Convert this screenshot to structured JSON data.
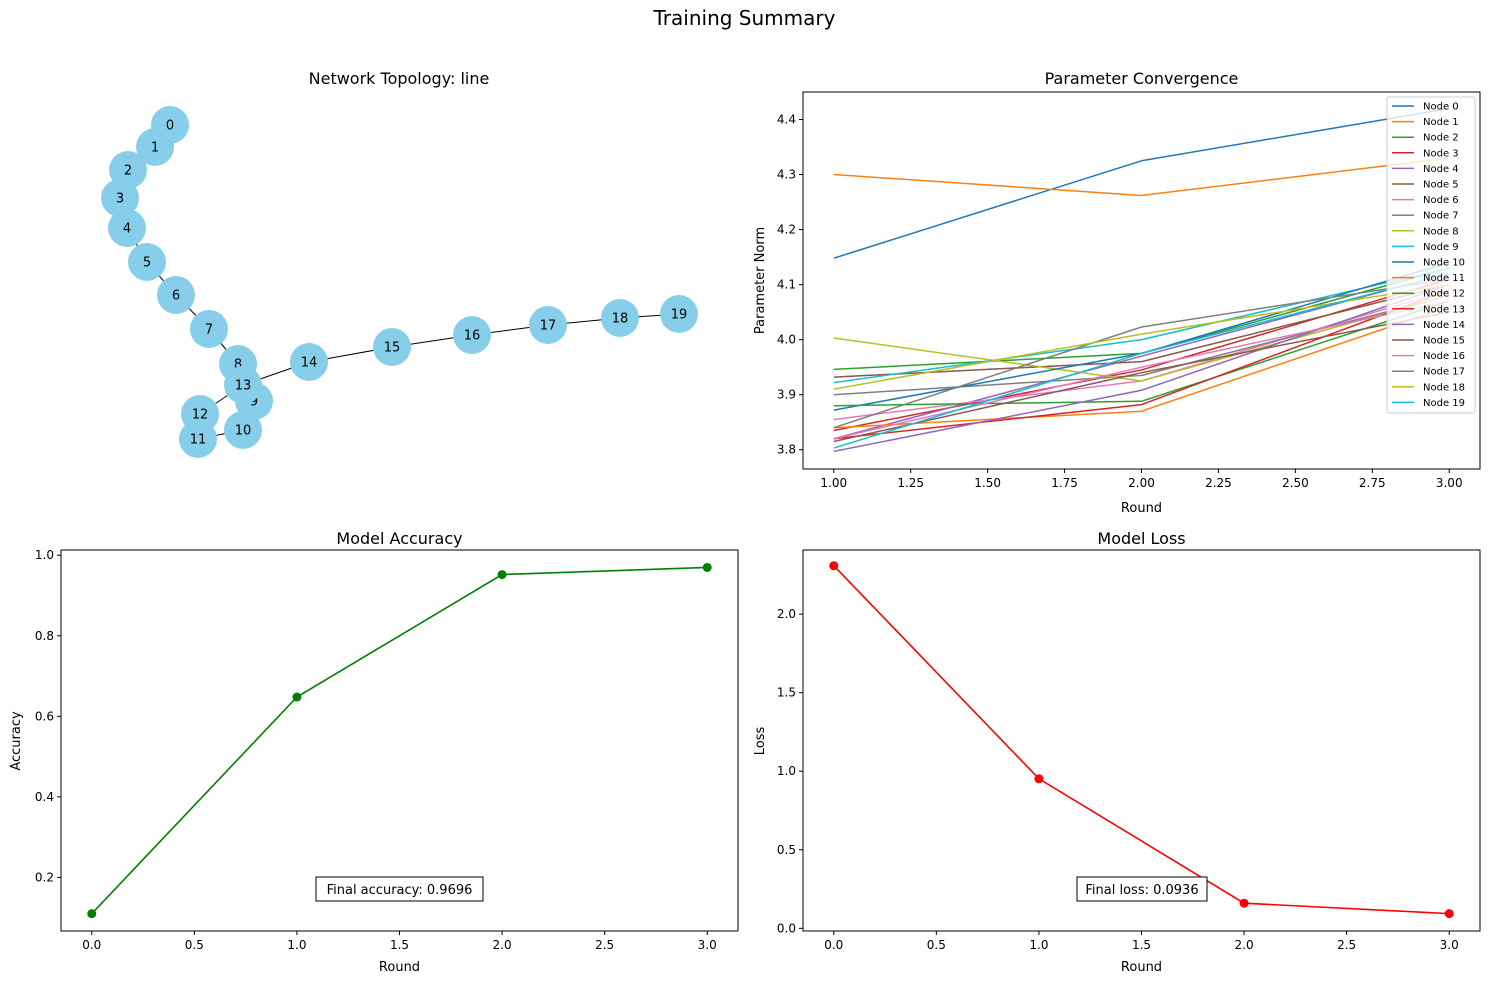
{
  "figure": {
    "title": "Training Summary"
  },
  "colors": {
    "node": "#87ceeb",
    "edge": "#000000",
    "accuracy": "#008000",
    "loss": "#ff0000",
    "palette": [
      "#1f77b4",
      "#ff7f0e",
      "#2ca02c",
      "#d62728",
      "#9467bd",
      "#8c564b",
      "#e377c2",
      "#7f7f7f",
      "#bcbd22",
      "#17becf"
    ]
  },
  "chart_data": [
    {
      "type": "network",
      "title": "Network Topology: line",
      "nodes": [
        "0",
        "1",
        "2",
        "3",
        "4",
        "5",
        "6",
        "7",
        "8",
        "9",
        "10",
        "11",
        "12",
        "13",
        "14",
        "15",
        "16",
        "17",
        "18",
        "19"
      ],
      "edges": [
        [
          "0",
          "1"
        ],
        [
          "1",
          "2"
        ],
        [
          "2",
          "3"
        ],
        [
          "3",
          "4"
        ],
        [
          "4",
          "5"
        ],
        [
          "5",
          "6"
        ],
        [
          "6",
          "7"
        ],
        [
          "7",
          "8"
        ],
        [
          "8",
          "9"
        ],
        [
          "9",
          "10"
        ],
        [
          "10",
          "11"
        ],
        [
          "11",
          "12"
        ],
        [
          "12",
          "13"
        ],
        [
          "13",
          "14"
        ],
        [
          "14",
          "15"
        ],
        [
          "15",
          "16"
        ],
        [
          "16",
          "17"
        ],
        [
          "17",
          "18"
        ],
        [
          "18",
          "19"
        ]
      ],
      "axes_visible": false
    },
    {
      "type": "line",
      "title": "Parameter Convergence",
      "xlabel": "Round",
      "ylabel": "Parameter Norm",
      "xlim": [
        0.9,
        3.1
      ],
      "ylim": [
        3.765,
        4.45
      ],
      "xticks": [
        "1.00",
        "1.25",
        "1.50",
        "1.75",
        "2.00",
        "2.25",
        "2.50",
        "2.75",
        "3.00"
      ],
      "yticks": [
        "3.8",
        "3.9",
        "4.0",
        "4.1",
        "4.2",
        "4.3",
        "4.4"
      ],
      "legend_position": "upper-right",
      "x": [
        1,
        2,
        3
      ],
      "series": [
        {
          "name": "Node 0",
          "values": [
            4.148,
            4.325,
            4.42
          ]
        },
        {
          "name": "Node 1",
          "values": [
            4.3,
            4.262,
            4.33
          ]
        },
        {
          "name": "Node 2",
          "values": [
            3.946,
            3.975,
            4.13
          ]
        },
        {
          "name": "Node 3",
          "values": [
            3.835,
            3.945,
            4.11
          ]
        },
        {
          "name": "Node 4",
          "values": [
            3.82,
            3.97,
            4.12
          ]
        },
        {
          "name": "Node 5",
          "values": [
            3.932,
            3.96,
            4.1
          ]
        },
        {
          "name": "Node 6",
          "values": [
            3.855,
            3.925,
            4.09
          ]
        },
        {
          "name": "Node 7",
          "values": [
            3.9,
            3.935,
            4.08
          ]
        },
        {
          "name": "Node 8",
          "values": [
            4.003,
            3.925,
            4.08
          ]
        },
        {
          "name": "Node 9",
          "values": [
            3.922,
            4.0,
            4.13
          ]
        },
        {
          "name": "Node 10",
          "values": [
            3.872,
            3.975,
            4.14
          ]
        },
        {
          "name": "Node 11",
          "values": [
            3.84,
            3.87,
            4.06
          ]
        },
        {
          "name": "Node 12",
          "values": [
            3.88,
            3.888,
            4.07
          ]
        },
        {
          "name": "Node 13",
          "values": [
            3.82,
            3.882,
            4.09
          ]
        },
        {
          "name": "Node 14",
          "values": [
            3.797,
            3.908,
            4.1
          ]
        },
        {
          "name": "Node 15",
          "values": [
            3.815,
            3.94,
            4.05
          ]
        },
        {
          "name": "Node 16",
          "values": [
            3.82,
            3.95,
            4.07
          ]
        },
        {
          "name": "Node 17",
          "values": [
            3.84,
            4.023,
            4.11
          ]
        },
        {
          "name": "Node 18",
          "values": [
            3.91,
            4.01,
            4.1
          ]
        },
        {
          "name": "Node 19",
          "values": [
            3.803,
            3.975,
            4.12
          ]
        }
      ]
    },
    {
      "type": "line",
      "title": "Model Accuracy",
      "xlabel": "Round",
      "ylabel": "Accuracy",
      "xlim": [
        -0.15,
        3.15
      ],
      "ylim": [
        0.067,
        1.013
      ],
      "xticks": [
        "0.0",
        "0.5",
        "1.0",
        "1.5",
        "2.0",
        "2.5",
        "3.0"
      ],
      "yticks": [
        "0.2",
        "0.4",
        "0.6",
        "0.8",
        "1.0"
      ],
      "x": [
        0,
        1,
        2,
        3
      ],
      "values": [
        0.11,
        0.648,
        0.952,
        0.9696
      ],
      "markers": true,
      "annotation": "Final accuracy: 0.9696"
    },
    {
      "type": "line",
      "title": "Model Loss",
      "xlabel": "Round",
      "ylabel": "Loss",
      "xlim": [
        -0.15,
        3.15
      ],
      "ylim": [
        -0.017,
        2.408
      ],
      "xticks": [
        "0.0",
        "0.5",
        "1.0",
        "1.5",
        "2.0",
        "2.5",
        "3.0"
      ],
      "yticks": [
        "0.0",
        "0.5",
        "1.0",
        "1.5",
        "2.0"
      ],
      "x": [
        0,
        1,
        2,
        3
      ],
      "values": [
        2.308,
        0.952,
        0.16,
        0.0936
      ],
      "markers": true,
      "annotation": "Final loss: 0.0936"
    }
  ]
}
